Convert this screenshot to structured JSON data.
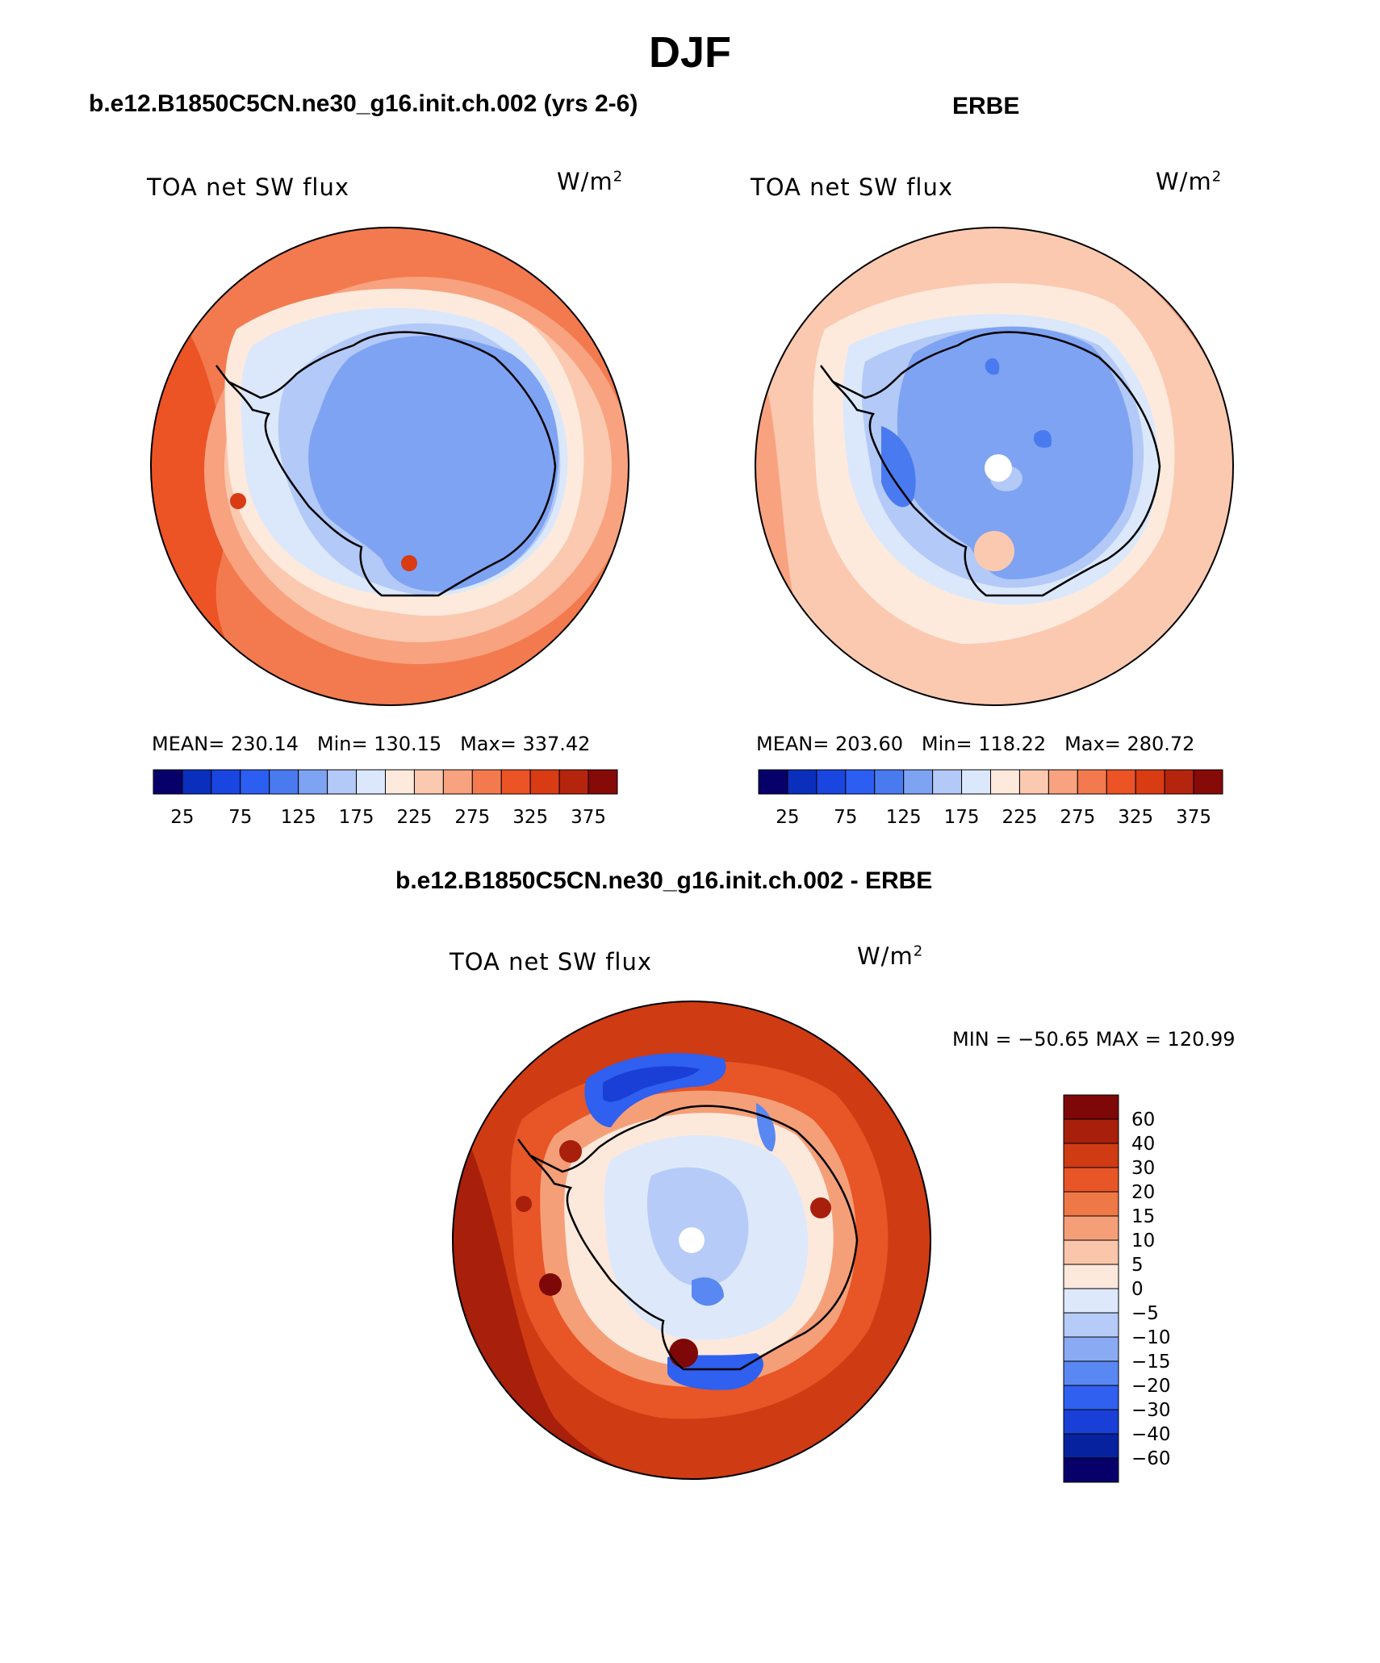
{
  "season": "DJF",
  "colors": {
    "abs_scale": [
      "#08006a",
      "#0a2fbd",
      "#1945e0",
      "#2d5ef2",
      "#4a7af0",
      "#7ea3f2",
      "#b3c9f7",
      "#dbe8fb",
      "#fdeadd",
      "#fbc9b0",
      "#f8a27f",
      "#f37a4e",
      "#ec5325",
      "#d93b13",
      "#b5240c",
      "#860a08"
    ],
    "diff_scale": [
      "#08006a",
      "#07229e",
      "#1a3fd6",
      "#2f60ef",
      "#5a88f2",
      "#8aabf3",
      "#b6cbf7",
      "#dde9fb",
      "#fde9dc",
      "#fac6ab",
      "#f59f78",
      "#ef7847",
      "#e85526",
      "#cf3b13",
      "#a81f0b",
      "#7e0808"
    ],
    "land_outline": "#000000"
  },
  "panels": {
    "model": {
      "title": "b.e12.B1850C5CN.ne30_g16.init.ch.002 (yrs 2-6)",
      "variable": "TOA net SW flux",
      "units": "W/m",
      "units_sup": "2",
      "mean_label": "MEAN=",
      "mean": "230.14",
      "min_label": "Min=",
      "min": "130.15",
      "max_label": "Max=",
      "max": "337.42",
      "colorbar_ticks": [
        "25",
        "75",
        "125",
        "175",
        "225",
        "275",
        "325",
        "375"
      ]
    },
    "obs": {
      "title": "ERBE",
      "variable": "TOA net SW flux",
      "units": "W/m",
      "units_sup": "2",
      "mean_label": "MEAN=",
      "mean": "203.60",
      "min_label": "Min=",
      "min": "118.22",
      "max_label": "Max=",
      "max": "280.72",
      "colorbar_ticks": [
        "25",
        "75",
        "125",
        "175",
        "225",
        "275",
        "325",
        "375"
      ]
    },
    "diff": {
      "title": "b.e12.B1850C5CN.ne30_g16.init.ch.002 - ERBE",
      "variable": "TOA net SW flux",
      "units": "W/m",
      "units_sup": "2",
      "min_label": "MIN =",
      "min": "−50.65",
      "max_label": "MAX =",
      "max": "120.99",
      "colorbar_ticks": [
        "60",
        "40",
        "30",
        "20",
        "15",
        "10",
        "5",
        "0",
        "−5",
        "−10",
        "−15",
        "−20",
        "−30",
        "−40",
        "−60"
      ]
    }
  }
}
